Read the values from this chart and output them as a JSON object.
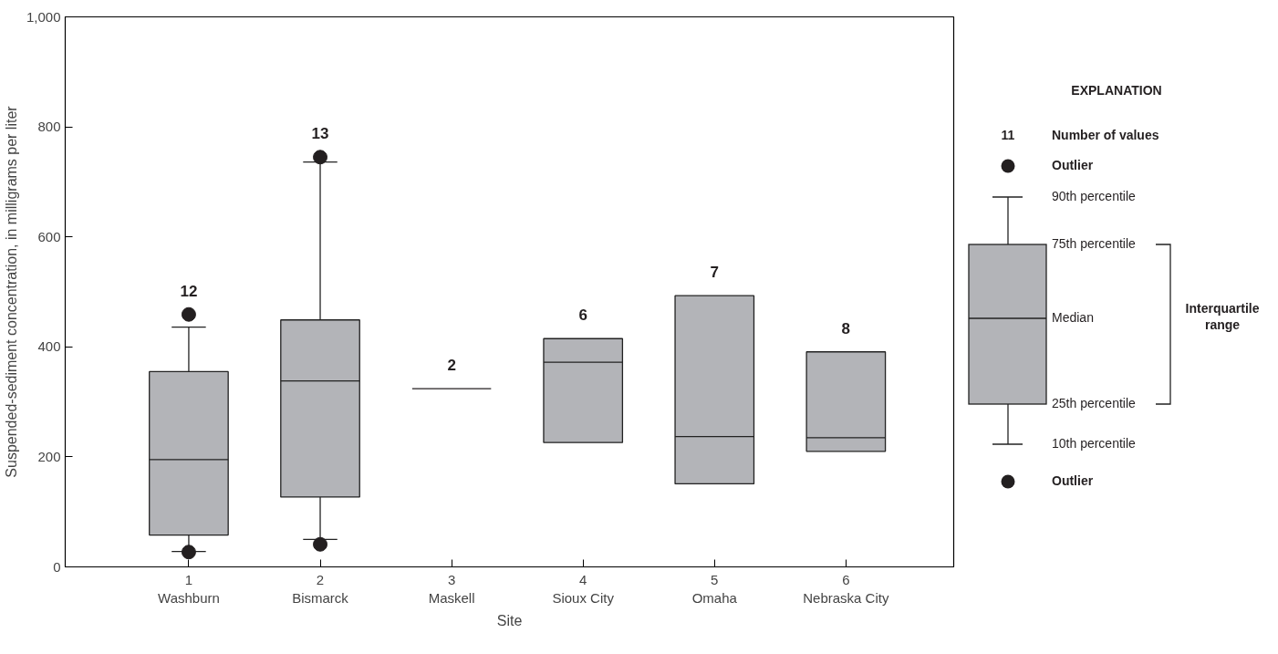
{
  "chart_data": {
    "type": "box",
    "categories": [
      "1\nWashburn",
      "2\nBismarck",
      "3\nMaskell",
      "4\nSioux City",
      "5\nOmaha",
      "6\nNebraska City"
    ],
    "colors": [
      "#b3b4b8",
      "#b3b4b8",
      "#231f20",
      "#b3b4b8",
      "#b3b4b8",
      "#b3b4b8"
    ],
    "boxes": [
      {
        "low": 28,
        "q1": 58,
        "median": 195,
        "q3": 355,
        "high": 436,
        "outliers": [
          459,
          27
        ]
      },
      {
        "low": 50,
        "q1": 127,
        "median": 338,
        "q3": 449,
        "high": 736,
        "outliers": [
          745,
          41
        ]
      },
      {
        "low": 324,
        "q1": 324,
        "median": 324,
        "q3": 324,
        "high": 324
      },
      {
        "low": 226,
        "q1": 226,
        "median": 372,
        "q3": 415,
        "high": 415
      },
      {
        "low": 151,
        "q1": 151,
        "median": 237,
        "q3": 493,
        "high": 493
      },
      {
        "low": 210,
        "q1": 210,
        "median": 235,
        "q3": 391,
        "high": 391
      }
    ],
    "xlabel": "Site",
    "ylabel": "Suspended-sediment concentration, in milligrams per liter",
    "ylim": [
      0,
      1000
    ],
    "yticks": [
      0,
      200,
      400,
      600,
      800,
      {
        "value": 1000,
        "label": "1,000"
      }
    ],
    "grid": false,
    "legend_title": "EXPLANATION",
    "annotations": [
      "12",
      "13",
      "2",
      "6",
      "7",
      "8",
      "11",
      "Number of values",
      "Outlier",
      "90th percentile",
      "75th percentile",
      "Median",
      "25th percentile",
      "10th percentile",
      "Outlier",
      "Interquartile\nrange"
    ]
  }
}
